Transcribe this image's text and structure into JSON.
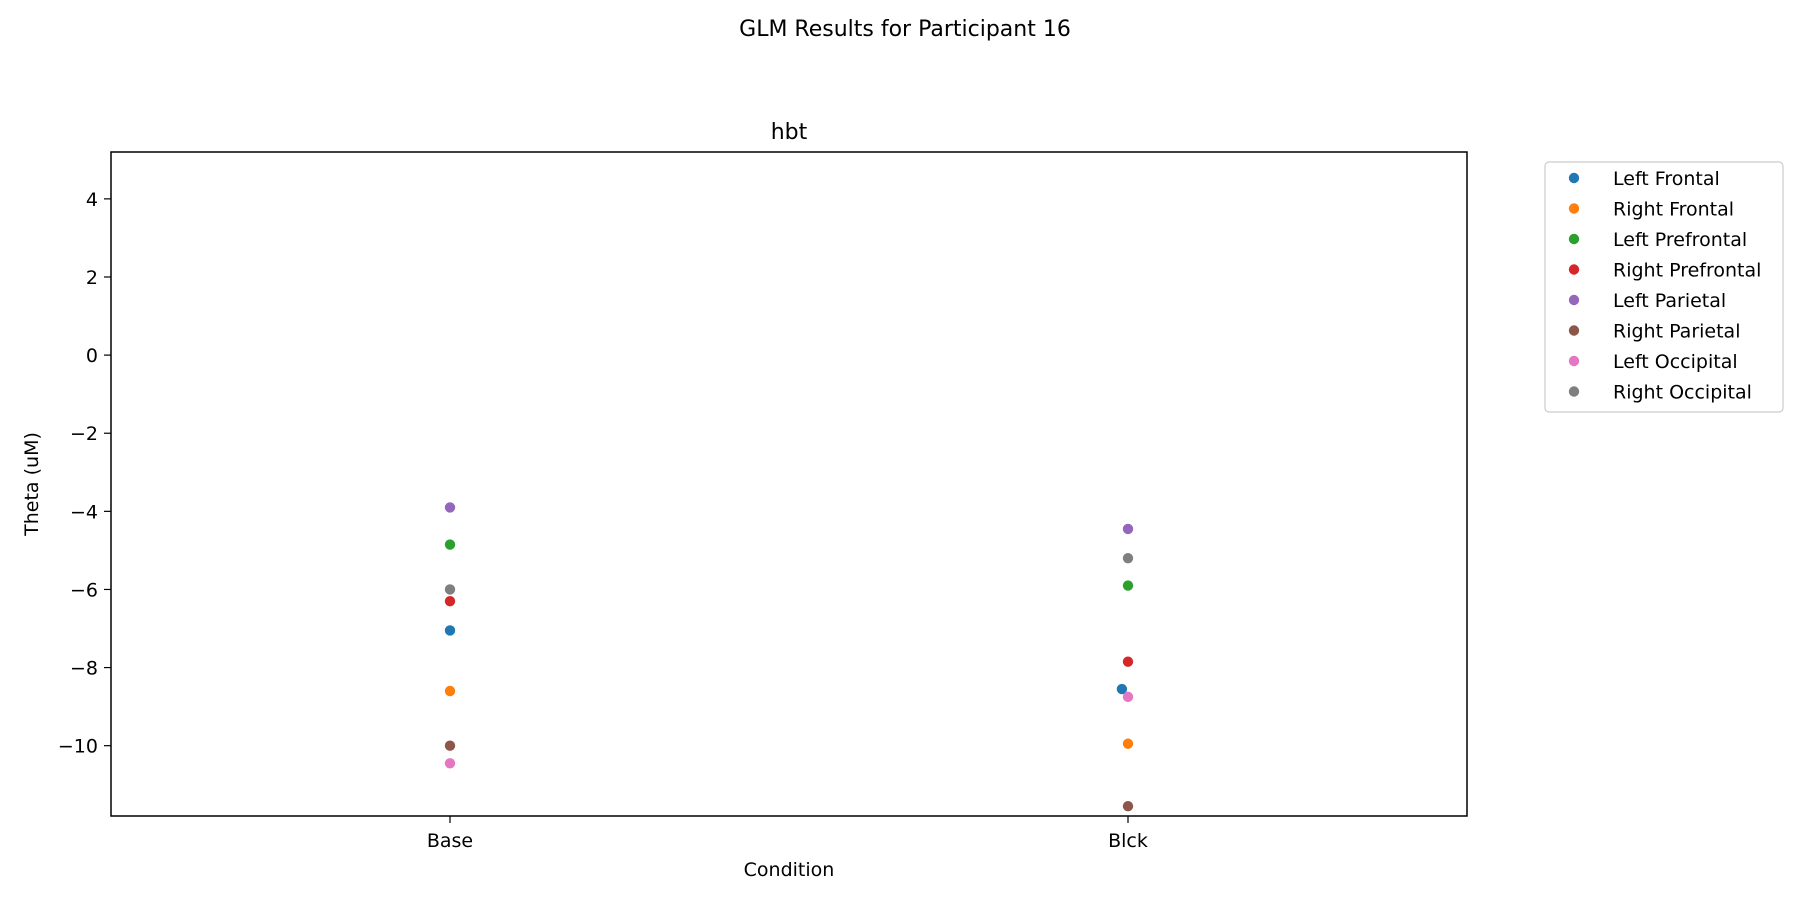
{
  "figure": {
    "suptitle": "GLM Results for Participant 16"
  },
  "chart_data": {
    "type": "scatter",
    "title": "hbt",
    "xlabel": "Condition",
    "ylabel": "Theta (uM)",
    "categories": [
      "Base",
      "Blck"
    ],
    "ylim": [
      -11.8,
      5.2
    ],
    "yticks": [
      4,
      2,
      0,
      -2,
      -4,
      -6,
      -8,
      -10
    ],
    "ytick_labels": [
      "4",
      "2",
      "0",
      "−2",
      "−4",
      "−6",
      "−8",
      "−10"
    ],
    "legend_position": "outside-top-right",
    "series": [
      {
        "name": "Left Frontal",
        "color": "#1f77b4",
        "values": [
          -7.05,
          -8.55
        ],
        "jitter": [
          0,
          -0.06
        ]
      },
      {
        "name": "Right Frontal",
        "color": "#ff7f0e",
        "values": [
          -8.6,
          -9.95
        ],
        "jitter": [
          0,
          0
        ]
      },
      {
        "name": "Left Prefrontal",
        "color": "#2ca02c",
        "values": [
          -4.85,
          -5.9
        ],
        "jitter": [
          0,
          0
        ]
      },
      {
        "name": "Right Prefrontal",
        "color": "#d62728",
        "values": [
          -6.3,
          -7.85
        ],
        "jitter": [
          0,
          0
        ]
      },
      {
        "name": "Left Parietal",
        "color": "#9467bd",
        "values": [
          -3.9,
          -4.45
        ],
        "jitter": [
          0,
          0
        ]
      },
      {
        "name": "Right Parietal",
        "color": "#8c564b",
        "values": [
          -10.0,
          -11.55
        ],
        "jitter": [
          0,
          0
        ]
      },
      {
        "name": "Left Occipital",
        "color": "#e377c2",
        "values": [
          -10.45,
          -8.75
        ],
        "jitter": [
          0,
          0
        ]
      },
      {
        "name": "Right Occipital",
        "color": "#7f7f7f",
        "values": [
          -6.0,
          -5.2
        ],
        "jitter": [
          0,
          0
        ]
      }
    ]
  }
}
